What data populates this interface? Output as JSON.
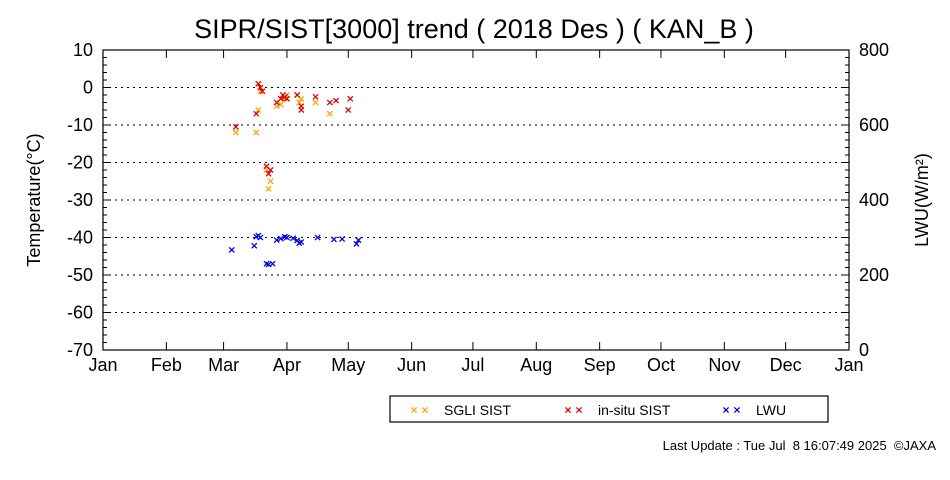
{
  "chart_data": {
    "type": "scatter",
    "title": "SIPR/SIST[3000] trend ( 2018 Des ) ( KAN_B )",
    "ylabel": "Temperature(°C)",
    "y2label": "LWU(W/m²)",
    "ylim": [
      -70,
      10
    ],
    "y2lim": [
      0,
      800
    ],
    "yticks": [
      "10",
      "0",
      "-10",
      "-20",
      "-30",
      "-40",
      "-50",
      "-60",
      "-70"
    ],
    "y2ticks": [
      "800",
      "600",
      "400",
      "200",
      "0"
    ],
    "xticks": [
      "Jan",
      "Feb",
      "Mar",
      "Apr",
      "May",
      "Jun",
      "Jul",
      "Aug",
      "Sep",
      "Oct",
      "Nov",
      "Dec",
      "Jan"
    ],
    "grid": "horizontal dotted",
    "legend_position": "bottom-right",
    "series": [
      {
        "name": "SGLI SIST",
        "color": "#ffa500",
        "axis": "left",
        "points": [
          [
            "2018-03-07",
            -12
          ],
          [
            "2018-03-17",
            -12
          ],
          [
            "2018-03-18",
            -6
          ],
          [
            "2018-03-19",
            -1
          ],
          [
            "2018-03-20",
            -1
          ],
          [
            "2018-03-22",
            -22
          ],
          [
            "2018-03-23",
            -27
          ],
          [
            "2018-03-24",
            -25
          ],
          [
            "2018-03-27",
            -5
          ],
          [
            "2018-03-29",
            -4.5
          ],
          [
            "2018-03-31",
            -3
          ],
          [
            "2018-04-01",
            -2
          ],
          [
            "2018-04-06",
            -2
          ],
          [
            "2018-04-07",
            -4
          ],
          [
            "2018-04-08",
            -3
          ],
          [
            "2018-04-15",
            -4
          ],
          [
            "2018-04-22",
            -7
          ]
        ]
      },
      {
        "name": "in-situ SIST",
        "color": "#e00000",
        "axis": "left",
        "points": [
          [
            "2018-03-07",
            -10.5
          ],
          [
            "2018-03-17",
            -7
          ],
          [
            "2018-03-18",
            1
          ],
          [
            "2018-03-19",
            0
          ],
          [
            "2018-03-20",
            -1
          ],
          [
            "2018-03-22",
            -21
          ],
          [
            "2018-03-23",
            -23
          ],
          [
            "2018-03-24",
            -22
          ],
          [
            "2018-03-27",
            -4
          ],
          [
            "2018-03-29",
            -3
          ],
          [
            "2018-03-30",
            -2
          ],
          [
            "2018-03-31",
            -2.5
          ],
          [
            "2018-04-01",
            -3
          ],
          [
            "2018-04-06",
            -2
          ],
          [
            "2018-04-08",
            -6
          ],
          [
            "2018-04-08",
            -5
          ],
          [
            "2018-04-15",
            -2.5
          ],
          [
            "2018-04-22",
            -4
          ],
          [
            "2018-04-25",
            -3.5
          ],
          [
            "2018-05-01",
            -6
          ],
          [
            "2018-05-02",
            -3
          ]
        ]
      },
      {
        "name": "LWU",
        "color": "#0000e0",
        "axis": "right",
        "points": [
          [
            "2018-03-05",
            267
          ],
          [
            "2018-03-16",
            278
          ],
          [
            "2018-03-17",
            302
          ],
          [
            "2018-03-18",
            305
          ],
          [
            "2018-03-19",
            300
          ],
          [
            "2018-03-22",
            230
          ],
          [
            "2018-03-23",
            228
          ],
          [
            "2018-03-25",
            230
          ],
          [
            "2018-03-27",
            293
          ],
          [
            "2018-03-29",
            297
          ],
          [
            "2018-03-31",
            302
          ],
          [
            "2018-04-01",
            300
          ],
          [
            "2018-04-04",
            298
          ],
          [
            "2018-04-06",
            292
          ],
          [
            "2018-04-07",
            285
          ],
          [
            "2018-04-08",
            288
          ],
          [
            "2018-04-16",
            300
          ],
          [
            "2018-04-24",
            295
          ],
          [
            "2018-04-28",
            296
          ],
          [
            "2018-05-05",
            283
          ],
          [
            "2018-05-06",
            293
          ]
        ]
      }
    ]
  },
  "footer": {
    "last_update": "Last Update : Tue Jul  8 16:07:49 2025  ©JAXA"
  }
}
